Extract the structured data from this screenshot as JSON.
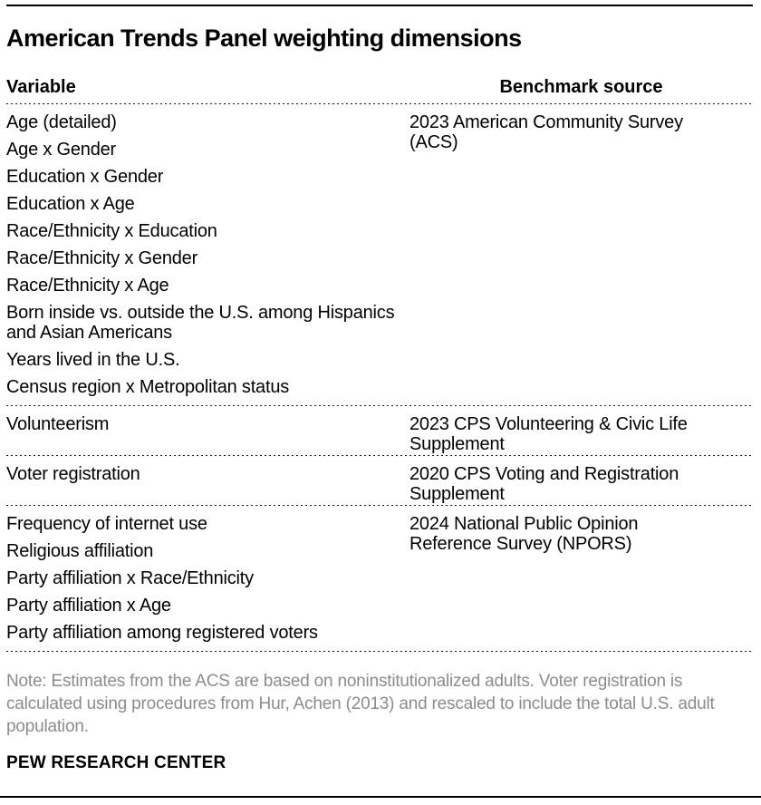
{
  "title": "American Trends Panel weighting dimensions",
  "table": {
    "headers": {
      "variable": "Variable",
      "benchmark": "Benchmark source"
    },
    "sections": [
      {
        "variables": [
          "Age (detailed)",
          "Age x Gender",
          "Education x Gender",
          "Education x Age",
          "Race/Ethnicity x Education",
          "Race/Ethnicity x Gender",
          "Race/Ethnicity x Age",
          "Born inside vs. outside the U.S. among Hispanics and Asian Americans",
          "Years lived in the U.S.",
          "Census region x Metropolitan status"
        ],
        "benchmark": "2023 American Community Survey (ACS)"
      },
      {
        "variables": [
          "Volunteerism"
        ],
        "benchmark": "2023 CPS Volunteering & Civic Life Supplement"
      },
      {
        "variables": [
          "Voter registration"
        ],
        "benchmark": "2020 CPS Voting and Registration Supplement"
      },
      {
        "variables": [
          "Frequency of internet use",
          "Religious affiliation",
          "Party affiliation x Race/Ethnicity",
          "Party affiliation x Age",
          "Party affiliation among registered voters"
        ],
        "benchmark": "2024 National Public Opinion Reference Survey (NPORS)"
      }
    ]
  },
  "note": "Note: Estimates from the ACS are based on noninstitutionalized adults. Voter registration is calculated using procedures from Hur, Achen (2013) and rescaled to include the total U.S. adult population.",
  "footer": "PEW RESEARCH CENTER",
  "colors": {
    "text": "#000000",
    "note_text": "#8c8c8c",
    "rule": "#000000"
  },
  "chart_data": {
    "type": "table",
    "title": "American Trends Panel weighting dimensions",
    "columns": [
      "Variable",
      "Benchmark source"
    ],
    "rows": [
      [
        "Age (detailed)",
        "2023 American Community Survey (ACS)"
      ],
      [
        "Age x Gender",
        "2023 American Community Survey (ACS)"
      ],
      [
        "Education x Gender",
        "2023 American Community Survey (ACS)"
      ],
      [
        "Education x Age",
        "2023 American Community Survey (ACS)"
      ],
      [
        "Race/Ethnicity x Education",
        "2023 American Community Survey (ACS)"
      ],
      [
        "Race/Ethnicity x Gender",
        "2023 American Community Survey (ACS)"
      ],
      [
        "Race/Ethnicity x Age",
        "2023 American Community Survey (ACS)"
      ],
      [
        "Born inside vs. outside the U.S. among Hispanics and Asian Americans",
        "2023 American Community Survey (ACS)"
      ],
      [
        "Years lived in the U.S.",
        "2023 American Community Survey (ACS)"
      ],
      [
        "Census region x Metropolitan status",
        "2023 American Community Survey (ACS)"
      ],
      [
        "Volunteerism",
        "2023 CPS Volunteering & Civic Life Supplement"
      ],
      [
        "Voter registration",
        "2020 CPS Voting and Registration Supplement"
      ],
      [
        "Frequency of internet use",
        "2024 National Public Opinion Reference Survey (NPORS)"
      ],
      [
        "Religious affiliation",
        "2024 National Public Opinion Reference Survey (NPORS)"
      ],
      [
        "Party affiliation x Race/Ethnicity",
        "2024 National Public Opinion Reference Survey (NPORS)"
      ],
      [
        "Party affiliation x Age",
        "2024 National Public Opinion Reference Survey (NPORS)"
      ],
      [
        "Party affiliation among registered voters",
        "2024 National Public Opinion Reference Survey (NPORS)"
      ]
    ],
    "note": "Note: Estimates from the ACS are based on noninstitutionalized adults. Voter registration is calculated using procedures from Hur, Achen (2013) and rescaled to include the total U.S. adult population.",
    "source": "PEW RESEARCH CENTER"
  }
}
